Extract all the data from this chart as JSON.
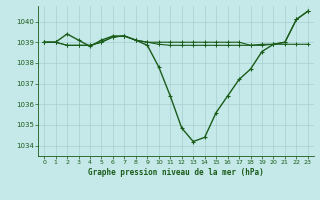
{
  "title": "Graphe pression niveau de la mer (hPa)",
  "bg_color": "#c5e8e8",
  "grid_color": "#a8d0d0",
  "line_color": "#1a5c1a",
  "ylim": [
    1033.5,
    1040.75
  ],
  "yticks": [
    1034,
    1035,
    1036,
    1037,
    1038,
    1039,
    1040
  ],
  "xlim": [
    -0.5,
    23.5
  ],
  "xticks": [
    0,
    1,
    2,
    3,
    4,
    5,
    6,
    7,
    8,
    9,
    10,
    11,
    12,
    13,
    14,
    15,
    16,
    17,
    18,
    19,
    20,
    21,
    22,
    23
  ],
  "curve1": [
    1039.0,
    1039.0,
    1039.4,
    1039.1,
    1038.8,
    1039.1,
    1039.3,
    1039.3,
    1039.1,
    1038.85,
    1037.8,
    1036.4,
    1034.85,
    1034.2,
    1034.4,
    1035.6,
    1036.4,
    1037.2,
    1037.7,
    1038.55,
    1038.9,
    1039.0,
    1040.1,
    1040.5
  ],
  "curve2": [
    1039.0,
    1039.0,
    1038.85,
    1038.85,
    1038.85,
    1039.0,
    1039.25,
    1039.3,
    1039.1,
    1039.0,
    1039.0,
    1039.0,
    1039.0,
    1039.0,
    1039.0,
    1039.0,
    1039.0,
    1039.0,
    1038.85,
    1038.9,
    1038.9,
    1039.0,
    1040.1,
    1040.5
  ],
  "curve3": [
    1039.0,
    1039.0,
    1038.85,
    1038.85,
    1038.85,
    1039.0,
    1039.25,
    1039.3,
    1039.1,
    1039.0,
    1038.9,
    1038.85,
    1038.85,
    1038.85,
    1038.85,
    1038.85,
    1038.85,
    1038.85,
    1038.85,
    1038.85,
    1038.9,
    1038.9,
    1038.9,
    1038.9
  ]
}
